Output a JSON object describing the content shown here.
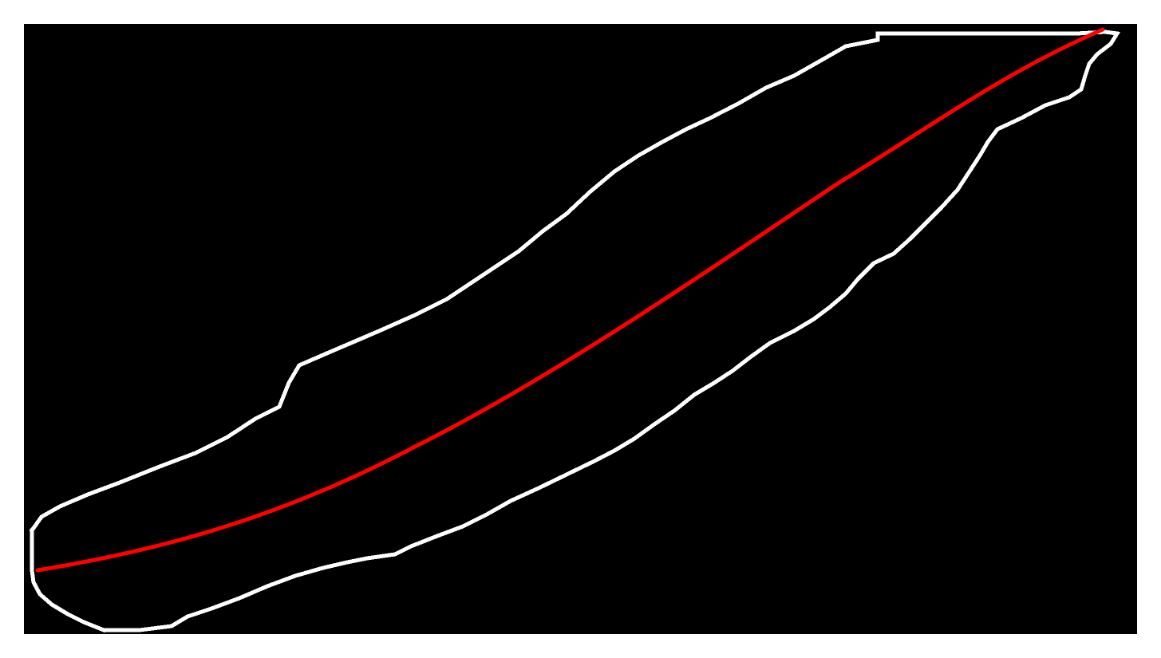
{
  "colors": {
    "page_background": "#ffffff",
    "canvas_background": "#000000",
    "outline_stroke": "#ffffff",
    "centerline_stroke": "#ff0000"
  },
  "figure": {
    "description_visible_text": "",
    "elements": [
      {
        "name": "outline-contour",
        "style": "pixelated-staircase"
      },
      {
        "name": "centerline-curve",
        "style": "smooth"
      }
    ]
  }
}
